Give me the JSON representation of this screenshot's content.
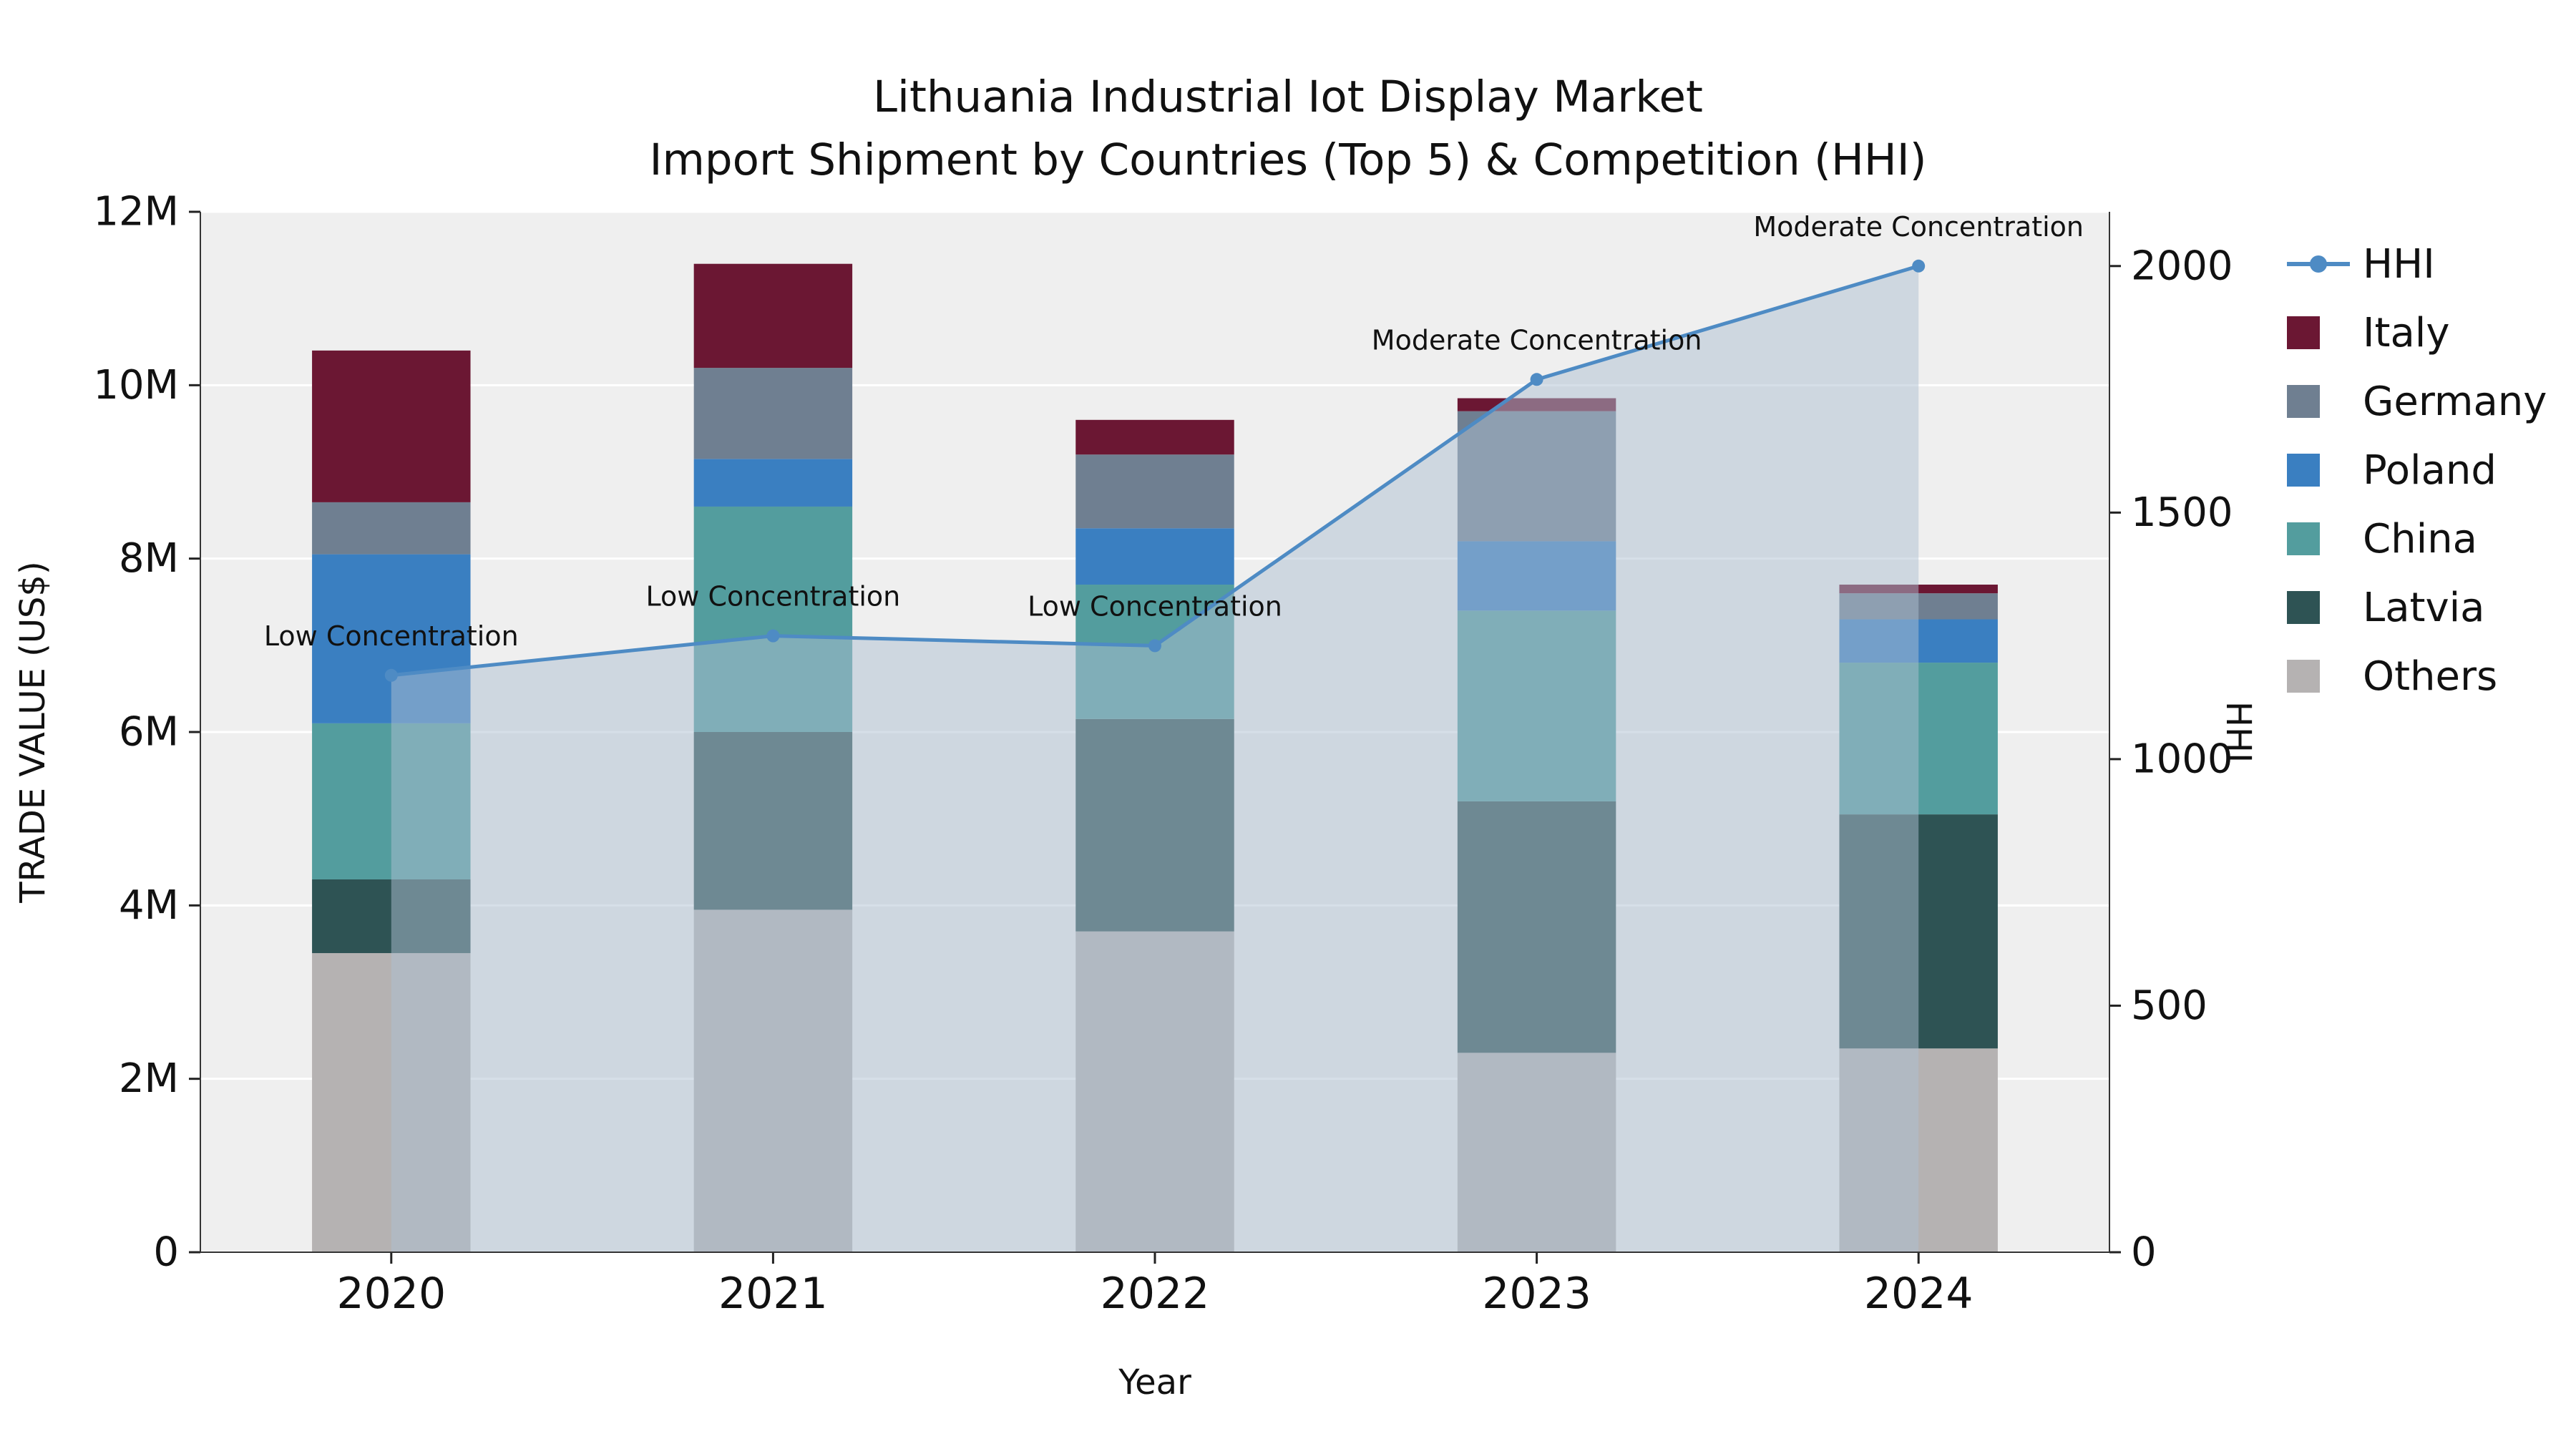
{
  "chart_data": {
    "type": "bar",
    "stacked": true,
    "title": "Lithuania Industrial Iot Display Market",
    "subtitle": "Import Shipment by Countries (Top 5) & Competition (HHI)",
    "xlabel": "Year",
    "ylabel_left": "TRADE VALUE (US$)",
    "ylabel_right": "HHI",
    "categories": [
      "2020",
      "2021",
      "2022",
      "2023",
      "2024"
    ],
    "series": [
      {
        "name": "Others",
        "color": "#b5b2b2",
        "values": [
          3450000,
          3950000,
          3700000,
          2300000,
          2350000
        ]
      },
      {
        "name": "Latvia",
        "color": "#2e5354",
        "values": [
          850000,
          2050000,
          2450000,
          2900000,
          2700000
        ]
      },
      {
        "name": "China",
        "color": "#539d9e",
        "values": [
          1800000,
          2600000,
          1550000,
          2200000,
          1750000
        ]
      },
      {
        "name": "Poland",
        "color": "#3a7fc1",
        "values": [
          1950000,
          550000,
          650000,
          800000,
          500000
        ]
      },
      {
        "name": "Germany",
        "color": "#6f7f91",
        "values": [
          600000,
          1050000,
          850000,
          1500000,
          300000
        ]
      },
      {
        "name": "Italy",
        "color": "#6b1733",
        "values": [
          1750000,
          1200000,
          400000,
          150000,
          100000
        ]
      }
    ],
    "line_series": {
      "name": "HHI",
      "color": "#4e8bc4",
      "fill": "rgba(174,191,210,0.5)",
      "values": [
        1170,
        1250,
        1230,
        1770,
        2000
      ]
    },
    "annotations": [
      {
        "category": "2020",
        "label": "Low Concentration"
      },
      {
        "category": "2021",
        "label": "Low Concentration"
      },
      {
        "category": "2022",
        "label": "Low Concentration"
      },
      {
        "category": "2023",
        "label": "Moderate Concentration"
      },
      {
        "category": "2024",
        "label": "Moderate Concentration"
      }
    ],
    "yaxis_left": {
      "min": 0,
      "max": 12000000,
      "ticks": [
        {
          "v": 0,
          "label": "0"
        },
        {
          "v": 2000000,
          "label": "2M"
        },
        {
          "v": 4000000,
          "label": "4M"
        },
        {
          "v": 6000000,
          "label": "6M"
        },
        {
          "v": 8000000,
          "label": "8M"
        },
        {
          "v": 10000000,
          "label": "10M"
        },
        {
          "v": 12000000,
          "label": "12M"
        }
      ]
    },
    "yaxis_right": {
      "min": 0,
      "max": 2110,
      "ticks": [
        {
          "v": 0,
          "label": "0"
        },
        {
          "v": 500,
          "label": "500"
        },
        {
          "v": 1000,
          "label": "1000"
        },
        {
          "v": 1500,
          "label": "1500"
        },
        {
          "v": 2000,
          "label": "2000"
        }
      ]
    },
    "legend": [
      {
        "name": "HHI",
        "type": "line",
        "color": "#4e8bc4"
      },
      {
        "name": "Italy",
        "type": "patch",
        "color": "#6b1733"
      },
      {
        "name": "Germany",
        "type": "patch",
        "color": "#6f7f91"
      },
      {
        "name": "Poland",
        "type": "patch",
        "color": "#3a7fc1"
      },
      {
        "name": "China",
        "type": "patch",
        "color": "#539d9e"
      },
      {
        "name": "Latvia",
        "type": "patch",
        "color": "#2e5354"
      },
      {
        "name": "Others",
        "type": "patch",
        "color": "#b5b2b2"
      }
    ],
    "plot_background": "#efefef",
    "grid_color": "#ffffff"
  }
}
